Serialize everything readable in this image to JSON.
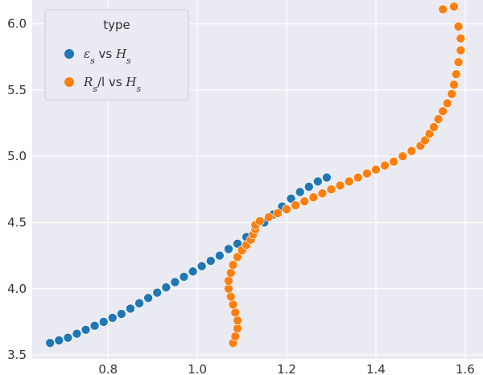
{
  "chart_data": {
    "type": "scatter",
    "title": "",
    "xlabel": "",
    "ylabel": "",
    "xlim": [
      0.63,
      1.64
    ],
    "ylim": [
      3.47,
      6.18
    ],
    "xticks": [
      0.8,
      1.0,
      1.2,
      1.4,
      1.6
    ],
    "xtick_labels": [
      "0.8",
      "1.0",
      "1.2",
      "1.4",
      "1.6"
    ],
    "yticks": [
      3.5,
      4.0,
      4.5,
      5.0,
      5.5,
      6.0
    ],
    "ytick_labels": [
      "3.5",
      "4.0",
      "4.5",
      "5.0",
      "5.5",
      "6.0"
    ],
    "grid": true,
    "legend": {
      "title": "type",
      "placement": "top-left",
      "entries": [
        {
          "name": "ε_s vs H_s",
          "text_main": "ε",
          "text_sub": "s",
          "text_mid": " vs ",
          "text_main2": "H",
          "text_sub2": "s",
          "color": "#1f77b4"
        },
        {
          "name": "R_s/l vs H_s",
          "text_main": "R",
          "text_sub": "s",
          "text_mid": "/l vs ",
          "text_main2": "H",
          "text_sub2": "s",
          "color": "#ff7f0e"
        }
      ]
    },
    "series": [
      {
        "name": "ε_s vs H_s",
        "color": "#1f77b4",
        "points": [
          [
            0.67,
            3.59
          ],
          [
            0.69,
            3.61
          ],
          [
            0.71,
            3.63
          ],
          [
            0.73,
            3.66
          ],
          [
            0.75,
            3.69
          ],
          [
            0.77,
            3.72
          ],
          [
            0.79,
            3.75
          ],
          [
            0.81,
            3.78
          ],
          [
            0.83,
            3.81
          ],
          [
            0.85,
            3.85
          ],
          [
            0.87,
            3.89
          ],
          [
            0.89,
            3.93
          ],
          [
            0.91,
            3.97
          ],
          [
            0.93,
            4.01
          ],
          [
            0.95,
            4.05
          ],
          [
            0.97,
            4.09
          ],
          [
            0.99,
            4.13
          ],
          [
            1.01,
            4.17
          ],
          [
            1.03,
            4.21
          ],
          [
            1.05,
            4.25
          ],
          [
            1.07,
            4.3
          ],
          [
            1.09,
            4.34
          ],
          [
            1.11,
            4.39
          ],
          [
            1.13,
            4.44
          ],
          [
            1.15,
            4.5
          ],
          [
            1.17,
            4.56
          ],
          [
            1.19,
            4.62
          ],
          [
            1.21,
            4.68
          ],
          [
            1.23,
            4.73
          ],
          [
            1.25,
            4.77
          ],
          [
            1.27,
            4.81
          ],
          [
            1.29,
            4.84
          ]
        ]
      },
      {
        "name": "R_s/l vs H_s",
        "color": "#ff7f0e",
        "points": [
          [
            1.08,
            3.59
          ],
          [
            1.085,
            3.64
          ],
          [
            1.09,
            3.7
          ],
          [
            1.09,
            3.76
          ],
          [
            1.085,
            3.82
          ],
          [
            1.08,
            3.88
          ],
          [
            1.075,
            3.94
          ],
          [
            1.07,
            4.0
          ],
          [
            1.07,
            4.06
          ],
          [
            1.075,
            4.12
          ],
          [
            1.08,
            4.18
          ],
          [
            1.09,
            4.24
          ],
          [
            1.1,
            4.29
          ],
          [
            1.11,
            4.33
          ],
          [
            1.12,
            4.37
          ],
          [
            1.125,
            4.41
          ],
          [
            1.13,
            4.45
          ],
          [
            1.13,
            4.48
          ],
          [
            1.14,
            4.51
          ],
          [
            1.16,
            4.54
          ],
          [
            1.18,
            4.57
          ],
          [
            1.2,
            4.6
          ],
          [
            1.22,
            4.63
          ],
          [
            1.24,
            4.66
          ],
          [
            1.26,
            4.69
          ],
          [
            1.28,
            4.72
          ],
          [
            1.3,
            4.75
          ],
          [
            1.32,
            4.78
          ],
          [
            1.34,
            4.81
          ],
          [
            1.36,
            4.84
          ],
          [
            1.38,
            4.87
          ],
          [
            1.4,
            4.9
          ],
          [
            1.42,
            4.93
          ],
          [
            1.44,
            4.96
          ],
          [
            1.46,
            5.0
          ],
          [
            1.48,
            5.04
          ],
          [
            1.5,
            5.08
          ],
          [
            1.51,
            5.12
          ],
          [
            1.52,
            5.17
          ],
          [
            1.53,
            5.22
          ],
          [
            1.54,
            5.28
          ],
          [
            1.55,
            5.34
          ],
          [
            1.56,
            5.4
          ],
          [
            1.57,
            5.47
          ],
          [
            1.575,
            5.54
          ],
          [
            1.58,
            5.62
          ],
          [
            1.585,
            5.71
          ],
          [
            1.59,
            5.8
          ],
          [
            1.59,
            5.89
          ],
          [
            1.585,
            5.98
          ],
          [
            1.575,
            6.13
          ],
          [
            1.55,
            6.11
          ]
        ]
      }
    ]
  }
}
